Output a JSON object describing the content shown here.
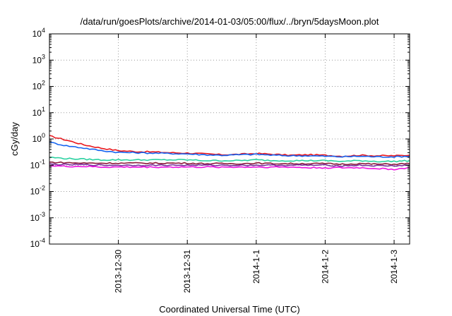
{
  "chart_data": {
    "type": "line",
    "title": "/data/run/goesPlots/archive/2014-01-03/05:00/flux/../bryn/5daysMoon.plot",
    "xlabel": "Coordinated Universal Time (UTC)",
    "ylabel": "cGy/day",
    "yscale": "log",
    "ylim": [
      0.0001,
      10000
    ],
    "xlim": [
      0,
      5.225
    ],
    "x_ticks": [
      {
        "label": "2013-12-30",
        "value": 1
      },
      {
        "label": "2013-12-31",
        "value": 2
      },
      {
        "label": "2014-1-1",
        "value": 3
      },
      {
        "label": "2014-1-2",
        "value": 4
      },
      {
        "label": "2014-1-3",
        "value": 5
      }
    ],
    "y_ticks": [
      {
        "base": "10",
        "exp": "-4",
        "value": 0.0001
      },
      {
        "base": "10",
        "exp": "-3",
        "value": 0.001
      },
      {
        "base": "10",
        "exp": "-2",
        "value": 0.01
      },
      {
        "base": "10",
        "exp": "-1",
        "value": 0.1
      },
      {
        "base": "10",
        "exp": "0",
        "value": 1
      },
      {
        "base": "10",
        "exp": "1",
        "value": 10
      },
      {
        "base": "10",
        "exp": "2",
        "value": 100
      },
      {
        "base": "10",
        "exp": "3",
        "value": 1000
      },
      {
        "base": "10",
        "exp": "4",
        "value": 10000
      }
    ],
    "grid": true,
    "x": [
      0,
      0.25,
      0.5,
      0.75,
      1,
      1.25,
      1.5,
      1.75,
      2,
      2.25,
      2.5,
      2.75,
      3,
      3.25,
      3.5,
      3.75,
      4,
      4.25,
      4.5,
      4.75,
      5,
      5.225
    ],
    "series": [
      {
        "color": "#e8161c",
        "values": [
          1.3,
          0.9,
          0.6,
          0.45,
          0.36,
          0.33,
          0.32,
          0.3,
          0.29,
          0.27,
          0.25,
          0.26,
          0.28,
          0.26,
          0.24,
          0.25,
          0.24,
          0.22,
          0.24,
          0.23,
          0.23,
          0.24
        ]
      },
      {
        "color": "#1463f0",
        "values": [
          0.75,
          0.55,
          0.45,
          0.36,
          0.31,
          0.3,
          0.29,
          0.28,
          0.27,
          0.25,
          0.24,
          0.25,
          0.26,
          0.24,
          0.23,
          0.23,
          0.22,
          0.21,
          0.22,
          0.21,
          0.21,
          0.22
        ]
      },
      {
        "color": "#2ad1a0",
        "values": [
          0.2,
          0.18,
          0.17,
          0.16,
          0.16,
          0.16,
          0.16,
          0.16,
          0.16,
          0.15,
          0.15,
          0.15,
          0.16,
          0.15,
          0.15,
          0.15,
          0.15,
          0.14,
          0.15,
          0.14,
          0.14,
          0.15
        ]
      },
      {
        "color": "#8b1a3a",
        "values": [
          0.13,
          0.125,
          0.12,
          0.12,
          0.12,
          0.12,
          0.12,
          0.12,
          0.12,
          0.115,
          0.115,
          0.115,
          0.12,
          0.115,
          0.115,
          0.115,
          0.115,
          0.11,
          0.115,
          0.11,
          0.11,
          0.115
        ]
      },
      {
        "color": "#7a2e9c",
        "values": [
          0.11,
          0.105,
          0.105,
          0.1,
          0.1,
          0.1,
          0.1,
          0.1,
          0.1,
          0.1,
          0.1,
          0.1,
          0.1,
          0.1,
          0.1,
          0.1,
          0.1,
          0.095,
          0.1,
          0.095,
          0.095,
          0.1
        ]
      },
      {
        "color": "#ee14e0",
        "values": [
          0.095,
          0.09,
          0.09,
          0.085,
          0.085,
          0.085,
          0.085,
          0.085,
          0.085,
          0.085,
          0.085,
          0.085,
          0.085,
          0.085,
          0.085,
          0.08,
          0.08,
          0.08,
          0.08,
          0.075,
          0.07,
          0.08
        ]
      }
    ]
  }
}
